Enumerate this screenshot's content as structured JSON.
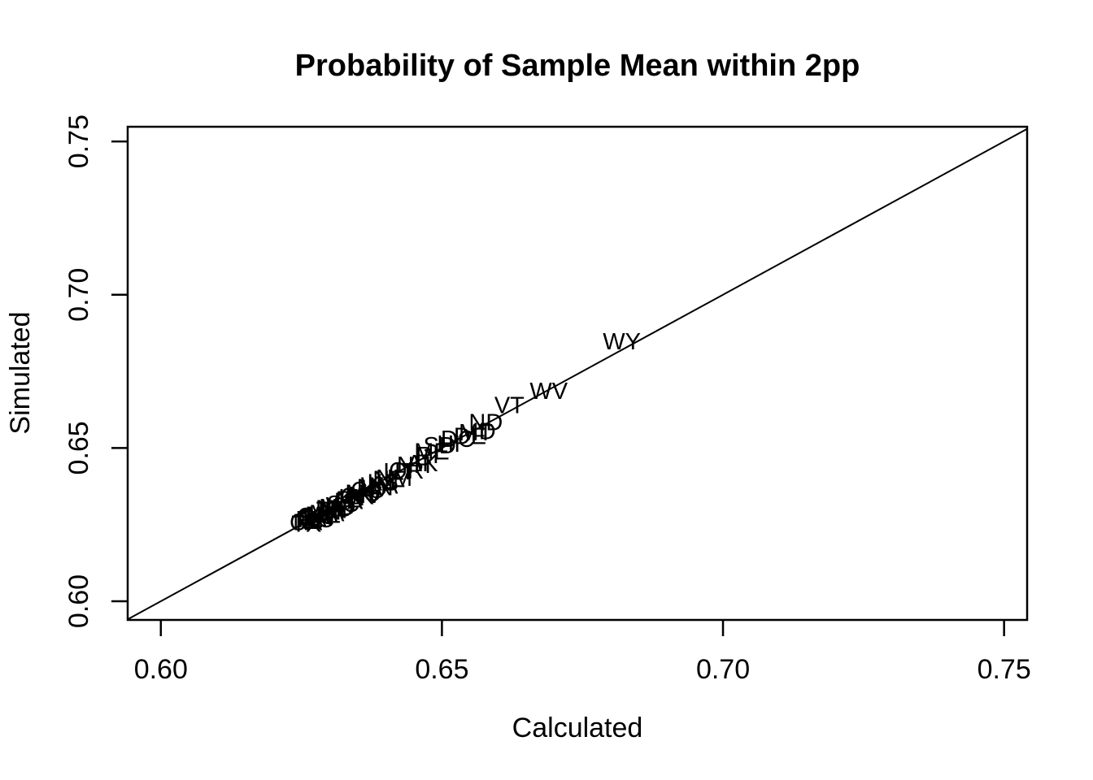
{
  "colors": {
    "foreground": "#000000",
    "background": "#ffffff"
  },
  "chart_data": {
    "type": "scatter",
    "title": "Probability of Sample Mean within 2pp",
    "xlabel": "Calculated",
    "ylabel": "Simulated",
    "xlim": [
      0.5941,
      0.7541
    ],
    "ylim": [
      0.5939,
      0.7548
    ],
    "xticks": [
      0.6,
      0.65,
      0.7,
      0.75
    ],
    "yticks": [
      0.6,
      0.65,
      0.7,
      0.75
    ],
    "xtick_labels": [
      "0.60",
      "0.65",
      "0.70",
      "0.75"
    ],
    "ytick_labels": [
      "0.60",
      "0.65",
      "0.70",
      "0.75"
    ],
    "grid": false,
    "legend": false,
    "marker": "state-abbreviation-text",
    "reference_line": {
      "type": "identity",
      "intercept": 0,
      "slope": 1
    },
    "points": [
      {
        "label": "WY",
        "x": 0.682,
        "y": 0.685
      },
      {
        "label": "WV",
        "x": 0.669,
        "y": 0.6688
      },
      {
        "label": "VT",
        "x": 0.662,
        "y": 0.6641
      },
      {
        "label": "ND",
        "x": 0.6578,
        "y": 0.6585
      },
      {
        "label": "ID",
        "x": 0.6575,
        "y": 0.6557
      },
      {
        "label": "MT",
        "x": 0.656,
        "y": 0.6552
      },
      {
        "label": "DE",
        "x": 0.655,
        "y": 0.654
      },
      {
        "label": "DC",
        "x": 0.6528,
        "y": 0.6531
      },
      {
        "label": "HI",
        "x": 0.6512,
        "y": 0.6516
      },
      {
        "label": "SD",
        "x": 0.6496,
        "y": 0.651
      },
      {
        "label": "ME",
        "x": 0.6482,
        "y": 0.649
      },
      {
        "label": "RI",
        "x": 0.6474,
        "y": 0.6478
      },
      {
        "label": "AK",
        "x": 0.6465,
        "y": 0.6452
      },
      {
        "label": "NH",
        "x": 0.645,
        "y": 0.6447
      },
      {
        "label": "OR",
        "x": 0.6437,
        "y": 0.6428
      },
      {
        "label": "UT",
        "x": 0.6424,
        "y": 0.6425
      },
      {
        "label": "NM",
        "x": 0.6415,
        "y": 0.6404
      },
      {
        "label": "NE",
        "x": 0.6406,
        "y": 0.64
      },
      {
        "label": "KS",
        "x": 0.6395,
        "y": 0.639
      },
      {
        "label": "WA",
        "x": 0.6389,
        "y": 0.6379
      },
      {
        "label": "MN",
        "x": 0.6381,
        "y": 0.6374
      },
      {
        "label": "IA",
        "x": 0.6375,
        "y": 0.637
      },
      {
        "label": "CO",
        "x": 0.6369,
        "y": 0.6364
      },
      {
        "label": "NV",
        "x": 0.6364,
        "y": 0.6349
      },
      {
        "label": "MS",
        "x": 0.6359,
        "y": 0.6355
      },
      {
        "label": "AR",
        "x": 0.6354,
        "y": 0.6348
      },
      {
        "label": "OK",
        "x": 0.6349,
        "y": 0.6344
      },
      {
        "label": "KY",
        "x": 0.6344,
        "y": 0.634
      },
      {
        "label": "CT",
        "x": 0.6339,
        "y": 0.6334
      },
      {
        "label": "LA",
        "x": 0.6334,
        "y": 0.6329
      },
      {
        "label": "AL",
        "x": 0.6329,
        "y": 0.6334
      },
      {
        "label": "SC",
        "x": 0.6324,
        "y": 0.6319
      },
      {
        "label": "WI",
        "x": 0.6319,
        "y": 0.6314
      },
      {
        "label": "MD",
        "x": 0.6314,
        "y": 0.6309
      },
      {
        "label": "MO",
        "x": 0.6309,
        "y": 0.6304
      },
      {
        "label": "TN",
        "x": 0.6304,
        "y": 0.6299
      },
      {
        "label": "IN",
        "x": 0.63,
        "y": 0.6294
      },
      {
        "label": "MA",
        "x": 0.6295,
        "y": 0.6289
      },
      {
        "label": "AZ",
        "x": 0.6293,
        "y": 0.6284
      },
      {
        "label": "VA",
        "x": 0.6289,
        "y": 0.6284
      },
      {
        "label": "NJ",
        "x": 0.6284,
        "y": 0.6279
      },
      {
        "label": "MI",
        "x": 0.628,
        "y": 0.6284
      },
      {
        "label": "NC",
        "x": 0.6278,
        "y": 0.6269
      },
      {
        "label": "GA",
        "x": 0.6274,
        "y": 0.6274
      },
      {
        "label": "OH",
        "x": 0.6274,
        "y": 0.6279
      },
      {
        "label": "IL",
        "x": 0.6269,
        "y": 0.6264
      },
      {
        "label": "PA",
        "x": 0.6269,
        "y": 0.6269
      },
      {
        "label": "NY",
        "x": 0.6264,
        "y": 0.6259
      },
      {
        "label": "FL",
        "x": 0.6264,
        "y": 0.6269
      },
      {
        "label": "TX",
        "x": 0.6259,
        "y": 0.6254
      },
      {
        "label": "CA",
        "x": 0.6258,
        "y": 0.6259
      }
    ]
  }
}
